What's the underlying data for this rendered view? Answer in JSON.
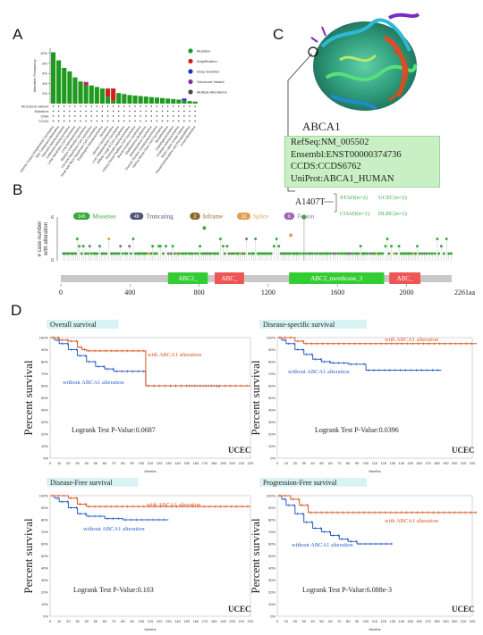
{
  "panels": {
    "a": "A",
    "b": "B",
    "c": "C",
    "d": "D"
  },
  "panelA": {
    "ylabel": "Alteration Frequency",
    "yticks": [
      "10%",
      "8%",
      "6%",
      "4%",
      "2%"
    ],
    "legend": [
      {
        "label": "Mutation",
        "color": "#1f9a1f"
      },
      {
        "label": "Amplification",
        "color": "#d11f1f"
      },
      {
        "label": "Deep Deletion",
        "color": "#1f2fd1"
      },
      {
        "label": "Structural Variant",
        "color": "#8a2fa8"
      },
      {
        "label": "Multiple Alterations",
        "color": "#4a4a4a"
      }
    ],
    "rowlabels": [
      "Structural variant",
      "Mutation",
      "CNA",
      "TCGA"
    ],
    "bars": [
      {
        "mut": 10.2,
        "amp": 0,
        "del": 0,
        "sv": 0,
        "multi": 0
      },
      {
        "mut": 8.6,
        "amp": 0,
        "del": 0,
        "sv": 0,
        "multi": 0
      },
      {
        "mut": 7.1,
        "amp": 0,
        "del": 0,
        "sv": 0,
        "multi": 0
      },
      {
        "mut": 6.4,
        "amp": 0,
        "del": 0,
        "sv": 0,
        "multi": 0
      },
      {
        "mut": 5.2,
        "amp": 0,
        "del": 0,
        "sv": 0,
        "multi": 0
      },
      {
        "mut": 4.4,
        "amp": 0,
        "del": 0,
        "sv": 0,
        "multi": 0
      },
      {
        "mut": 3.6,
        "amp": 0.4,
        "del": 0,
        "sv": 0.3,
        "multi": 0
      },
      {
        "mut": 3.6,
        "amp": 0,
        "del": 0,
        "sv": 0,
        "multi": 0
      },
      {
        "mut": 3.3,
        "amp": 0,
        "del": 0,
        "sv": 0,
        "multi": 0
      },
      {
        "mut": 3.0,
        "amp": 0,
        "del": 0,
        "sv": 0,
        "multi": 0
      },
      {
        "mut": 1.4,
        "amp": 1.6,
        "del": 0,
        "sv": 0,
        "multi": 0
      },
      {
        "mut": 0.6,
        "amp": 2.4,
        "del": 0,
        "sv": 0,
        "multi": 0
      },
      {
        "mut": 2.1,
        "amp": 0,
        "del": 0,
        "sv": 0,
        "multi": 0
      },
      {
        "mut": 1.9,
        "amp": 0,
        "del": 0,
        "sv": 0,
        "multi": 0
      },
      {
        "mut": 1.7,
        "amp": 0,
        "del": 0,
        "sv": 0,
        "multi": 0
      },
      {
        "mut": 1.6,
        "amp": 0,
        "del": 0,
        "sv": 0,
        "multi": 0
      },
      {
        "mut": 1.5,
        "amp": 0,
        "del": 0,
        "sv": 0,
        "multi": 0
      },
      {
        "mut": 1.4,
        "amp": 0,
        "del": 0,
        "sv": 0,
        "multi": 0
      },
      {
        "mut": 1.3,
        "amp": 0,
        "del": 0,
        "sv": 0,
        "multi": 0
      },
      {
        "mut": 1.2,
        "amp": 0,
        "del": 0,
        "sv": 0,
        "multi": 0
      },
      {
        "mut": 1.1,
        "amp": 0,
        "del": 0,
        "sv": 0,
        "multi": 0
      },
      {
        "mut": 1.0,
        "amp": 0,
        "del": 0,
        "sv": 0,
        "multi": 0
      },
      {
        "mut": 0.9,
        "amp": 0,
        "del": 0,
        "sv": 0,
        "multi": 0
      },
      {
        "mut": 0.8,
        "amp": 0,
        "del": 0,
        "sv": 0,
        "multi": 0
      },
      {
        "mut": 0.6,
        "amp": 0,
        "del": 0.4,
        "sv": 0,
        "multi": 0
      },
      {
        "mut": 0.5,
        "amp": 0,
        "del": 0,
        "sv": 0,
        "multi": 0
      },
      {
        "mut": 0.4,
        "amp": 0,
        "del": 0,
        "sv": 0,
        "multi": 0
      }
    ],
    "cancer_names": [
      "Uterine Corpus Endometrial Carcinoma",
      "Skin Cutaneous Melanoma",
      "Stomach Adenocarcinoma",
      "Colorectal Adenocarcinoma",
      "Lung Squamous Cell Carcinoma",
      "Lung Adenocarcinoma",
      "Bladder Urothelial Carcinoma",
      "Cervical Squamous Cell Carcinoma",
      "Head and Neck Squamous Cell Carcinoma",
      "Esophageal Adenocarcinoma",
      "Sarcoma",
      "Uterine Carcinosarcoma",
      "Liver Hepatocellular Carcinoma",
      "Diffuse Large B-Cell Lymphoma",
      "Pancreatic Adenocarcinoma",
      "Kidney Renal Papillary Cell Carcinoma",
      "Breast Invasive Carcinoma",
      "Glioblastoma Multiforme",
      "Adrenocortical Carcinoma",
      "Ovarian Serous Cystadenocarcinoma",
      "Kidney Renal Clear Cell Carcinoma",
      "Mesothelioma",
      "Cholangiocarcinoma",
      "Prostate Adenocarcinoma",
      "Brain Lower Grade Glioma",
      "Pheochromocytoma and Paraganglioma",
      "Uveal Melanoma"
    ]
  },
  "panelB": {
    "ylabel": "# case number with alteration",
    "legend": [
      {
        "count": "145",
        "label": "Missense",
        "color": "#3aa83a"
      },
      {
        "count": "49",
        "label": "Truncating",
        "color": "#555577"
      },
      {
        "count": "2",
        "label": "Inframe",
        "color": "#8a6a2a"
      },
      {
        "count": "13",
        "label": "Splice",
        "color": "#e0a050"
      },
      {
        "count": "6",
        "label": "Fusion",
        "color": "#9a6ab8"
      }
    ],
    "yticks": [
      "6",
      "0"
    ],
    "xticks": [
      "0",
      "400",
      "800",
      "1200",
      "1600",
      "2000"
    ],
    "xmax_label": "2261aa",
    "length": 2261,
    "domains": [
      {
        "label": "ABC2_",
        "start": 620,
        "end": 850,
        "color": "#33cc33"
      },
      {
        "label": "ABC_",
        "start": 890,
        "end": 1060,
        "color": "#ee5555"
      },
      {
        "label": "ABC2_membrane_3",
        "start": 1320,
        "end": 1870,
        "color": "#33cc33"
      },
      {
        "label": "ABC_",
        "start": 1900,
        "end": 2080,
        "color": "#ee5555"
      }
    ],
    "hotspot": "A1407T",
    "hotspot_cohorts": [
      [
        "STAD(n=2)",
        "UCEC(n=2)"
      ],
      [
        "COAD(n=1)",
        "DLBC(n=1)"
      ]
    ]
  },
  "panelC": {
    "gene": "ABCA1",
    "refseq": "RefSeq:NM_005502",
    "ensembl": "Ensembl:ENST00000374736",
    "ccds": "CCDS:CCDS6762",
    "uniprot": "UniProt:ABCA1_HUMAN"
  },
  "survival_common": {
    "ylabel": "Percent survival",
    "xlabel": "Months",
    "cohort": "UCEC",
    "with_label": "with ABCA1 alteration",
    "without_label": "without ABCA1 alteration",
    "with_color": "#d9541e",
    "without_color": "#2b5fc9",
    "yticks": [
      "100%",
      "90%",
      "80%",
      "70%",
      "60%",
      "50%",
      "40%",
      "30%",
      "20%",
      "10%",
      "0%"
    ],
    "xticks": [
      "0",
      "10",
      "20",
      "30",
      "40",
      "50",
      "60",
      "70",
      "80",
      "90",
      "100",
      "110",
      "120",
      "130",
      "140",
      "150",
      "160",
      "170",
      "180",
      "190",
      "200",
      "210",
      "220"
    ]
  },
  "survival": [
    {
      "title": "Overall survival",
      "pvalue": "Logrank Test P-Value:0.0687",
      "with": [
        [
          0,
          100
        ],
        [
          10,
          98
        ],
        [
          20,
          97
        ],
        [
          30,
          92
        ],
        [
          35,
          90
        ],
        [
          40,
          89
        ],
        [
          100,
          89
        ],
        [
          105,
          60
        ],
        [
          220,
          60
        ]
      ],
      "without": [
        [
          0,
          100
        ],
        [
          5,
          98
        ],
        [
          10,
          95
        ],
        [
          20,
          90
        ],
        [
          30,
          85
        ],
        [
          40,
          80
        ],
        [
          50,
          76
        ],
        [
          60,
          74
        ],
        [
          70,
          72
        ],
        [
          100,
          72
        ],
        [
          105,
          60
        ],
        [
          150,
          60
        ],
        [
          185,
          59
        ]
      ]
    },
    {
      "title": "Disease-specific survival",
      "pvalue": "Logrank Test P-Value:0.0396",
      "with": [
        [
          0,
          100
        ],
        [
          20,
          97
        ],
        [
          30,
          95
        ],
        [
          225,
          95
        ]
      ],
      "without": [
        [
          0,
          100
        ],
        [
          5,
          98
        ],
        [
          10,
          95
        ],
        [
          20,
          90
        ],
        [
          30,
          86
        ],
        [
          40,
          82
        ],
        [
          50,
          80
        ],
        [
          60,
          79
        ],
        [
          80,
          78
        ],
        [
          95,
          78
        ],
        [
          100,
          73
        ],
        [
          185,
          73
        ]
      ]
    },
    {
      "title": "Disease-Free survival",
      "pvalue": "Logrank Test P-Value:0.103",
      "with": [
        [
          0,
          100
        ],
        [
          20,
          98
        ],
        [
          30,
          93
        ],
        [
          40,
          91
        ],
        [
          220,
          91
        ]
      ],
      "without": [
        [
          0,
          100
        ],
        [
          5,
          98
        ],
        [
          10,
          95
        ],
        [
          20,
          90
        ],
        [
          30,
          85
        ],
        [
          40,
          83
        ],
        [
          60,
          81
        ],
        [
          80,
          80
        ],
        [
          130,
          80
        ]
      ]
    },
    {
      "title": "Progression-Free survival",
      "pvalue": "Logrank Test P-Value:6.088e-3",
      "with": [
        [
          0,
          100
        ],
        [
          15,
          97
        ],
        [
          25,
          92
        ],
        [
          35,
          86
        ],
        [
          225,
          86
        ]
      ],
      "without": [
        [
          0,
          100
        ],
        [
          5,
          97
        ],
        [
          10,
          92
        ],
        [
          20,
          85
        ],
        [
          30,
          78
        ],
        [
          40,
          73
        ],
        [
          50,
          70
        ],
        [
          60,
          67
        ],
        [
          70,
          64
        ],
        [
          80,
          62
        ],
        [
          90,
          60
        ],
        [
          130,
          60
        ]
      ]
    }
  ]
}
